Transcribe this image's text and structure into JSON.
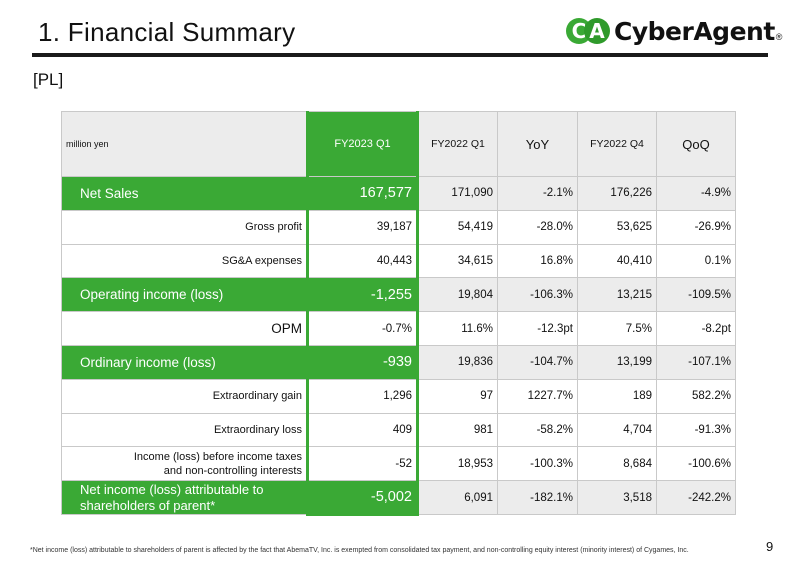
{
  "header": {
    "title": "1.  Financial Summary",
    "brand": "CyberAgent",
    "brand_mark": "CA",
    "brand_reg": "®"
  },
  "section": {
    "label": "[PL]"
  },
  "table": {
    "unit": "million yen",
    "columns": [
      "FY2023 Q1",
      "FY2022 Q1",
      "YoY",
      "FY2022 Q4",
      "QoQ"
    ],
    "rows": [
      {
        "label": "Net Sales",
        "values": [
          "167,577",
          "171,090",
          "-2.1%",
          "176,226",
          "-4.9%"
        ]
      },
      {
        "label": "Gross profit",
        "values": [
          "39,187",
          "54,419",
          "-28.0%",
          "53,625",
          "-26.9%"
        ]
      },
      {
        "label": "SG&A expenses",
        "values": [
          "40,443",
          "34,615",
          "16.8%",
          "40,410",
          "0.1%"
        ]
      },
      {
        "label": "Operating income (loss)",
        "values": [
          "-1,255",
          "19,804",
          "-106.3%",
          "13,215",
          "-109.5%"
        ]
      },
      {
        "label": "OPM",
        "values": [
          "-0.7%",
          "11.6%",
          "-12.3pt",
          "7.5%",
          "-8.2pt"
        ]
      },
      {
        "label": "Ordinary income (loss)",
        "values": [
          "-939",
          "19,836",
          "-104.7%",
          "13,199",
          "-107.1%"
        ]
      },
      {
        "label": "Extraordinary gain",
        "values": [
          "1,296",
          "97",
          "1227.7%",
          "189",
          "582.2%"
        ]
      },
      {
        "label": "Extraordinary loss",
        "values": [
          "409",
          "981",
          "-58.2%",
          "4,704",
          "-91.3%"
        ]
      },
      {
        "label_line1": "Income (loss) before income taxes",
        "label_line2": "and non-controlling interests",
        "values": [
          "-52",
          "18,953",
          "-100.3%",
          "8,684",
          "-100.6%"
        ]
      },
      {
        "label_line1": "Net income (loss) attributable to",
        "label_line2": "shareholders of parent*",
        "values": [
          "-5,002",
          "6,091",
          "-182.1%",
          "3,518",
          "-242.2%"
        ]
      }
    ]
  },
  "footnote": "*Net income (loss) attributable to shareholders of parent is affected by the fact that AbemaTV, Inc. is exempted from consolidated tax payment, and non-controlling equity interest (minority interest) of Cygames, Inc.",
  "page_number": "9",
  "colors": {
    "accent": "#3aa935",
    "header_bg": "#ececec"
  }
}
